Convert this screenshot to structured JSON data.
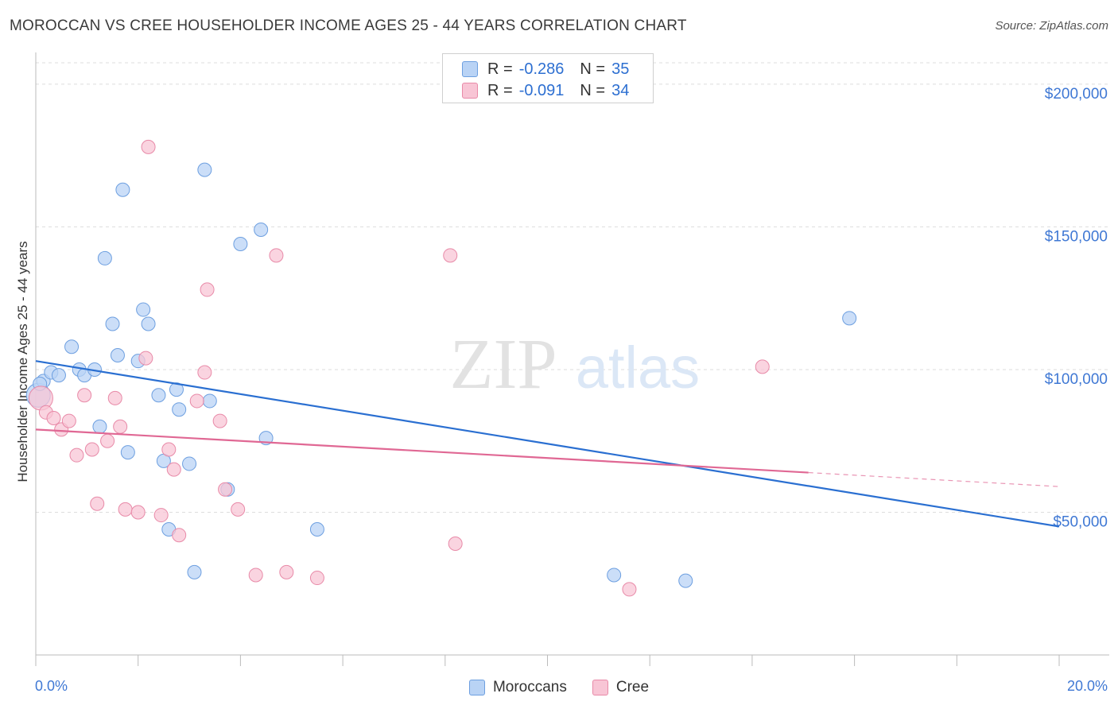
{
  "header": {
    "title": "MOROCCAN VS CREE HOUSEHOLDER INCOME AGES 25 - 44 YEARS CORRELATION CHART",
    "source": "Source: ZipAtlas.com"
  },
  "watermark": {
    "zip": "ZIP",
    "atlas": "atlas"
  },
  "stats_legend": {
    "rows": [
      {
        "r_label": "R =",
        "r_value": "-0.286",
        "n_label": "N =",
        "n_value": "35"
      },
      {
        "r_label": "R =",
        "r_value": "-0.091",
        "n_label": "N =",
        "n_value": "34"
      }
    ]
  },
  "colors": {
    "moroccans_fill": "#b9d3f5",
    "moroccans_stroke": "#6d9fe0",
    "moroccans_line": "#2a6fd1",
    "cree_fill": "#f8c5d5",
    "cree_stroke": "#e88aa8",
    "cree_line": "#e06894",
    "tick_label": "#3f78d4",
    "grid": "#dddddd"
  },
  "chart_data": {
    "type": "scatter",
    "title": "MOROCCAN VS CREE HOUSEHOLDER INCOME AGES 25 - 44 YEARS CORRELATION CHART",
    "xlabel": "",
    "ylabel": "Householder Income Ages 25 - 44 years",
    "xlim": [
      0,
      20
    ],
    "ylim": [
      0,
      210000
    ],
    "x_tick_labels": [
      "0.0%",
      "20.0%"
    ],
    "y_ticks": [
      50000,
      100000,
      150000,
      200000
    ],
    "y_tick_labels": [
      "$50,000",
      "$100,000",
      "$150,000",
      "$200,000"
    ],
    "grid": true,
    "legend_position": "bottom-center",
    "series": [
      {
        "name": "Moroccans",
        "points": [
          [
            0.05,
            91000
          ],
          [
            0.15,
            96000
          ],
          [
            0.3,
            99000
          ],
          [
            0.45,
            98000
          ],
          [
            0.7,
            108000
          ],
          [
            0.85,
            100000
          ],
          [
            0.95,
            98000
          ],
          [
            1.15,
            100000
          ],
          [
            1.25,
            80000
          ],
          [
            1.35,
            139000
          ],
          [
            1.5,
            116000
          ],
          [
            1.6,
            105000
          ],
          [
            1.7,
            163000
          ],
          [
            1.8,
            71000
          ],
          [
            2.0,
            103000
          ],
          [
            2.1,
            121000
          ],
          [
            2.2,
            116000
          ],
          [
            2.4,
            91000
          ],
          [
            2.5,
            68000
          ],
          [
            2.6,
            44000
          ],
          [
            2.75,
            93000
          ],
          [
            2.8,
            86000
          ],
          [
            3.0,
            67000
          ],
          [
            3.1,
            29000
          ],
          [
            3.3,
            170000
          ],
          [
            3.4,
            89000
          ],
          [
            3.75,
            58000
          ],
          [
            4.0,
            144000
          ],
          [
            4.4,
            149000
          ],
          [
            4.5,
            76000
          ],
          [
            5.5,
            44000
          ],
          [
            11.3,
            28000
          ],
          [
            12.7,
            26000
          ],
          [
            15.9,
            118000
          ],
          [
            0.08,
            95000
          ]
        ]
      },
      {
        "name": "Cree",
        "points": [
          [
            0.1,
            90000
          ],
          [
            0.2,
            85000
          ],
          [
            0.35,
            83000
          ],
          [
            0.5,
            79000
          ],
          [
            0.65,
            82000
          ],
          [
            0.8,
            70000
          ],
          [
            0.95,
            91000
          ],
          [
            1.1,
            72000
          ],
          [
            1.2,
            53000
          ],
          [
            1.4,
            75000
          ],
          [
            1.55,
            90000
          ],
          [
            1.65,
            80000
          ],
          [
            1.75,
            51000
          ],
          [
            2.0,
            50000
          ],
          [
            2.15,
            104000
          ],
          [
            2.2,
            178000
          ],
          [
            2.45,
            49000
          ],
          [
            2.6,
            72000
          ],
          [
            2.7,
            65000
          ],
          [
            2.8,
            42000
          ],
          [
            3.15,
            89000
          ],
          [
            3.3,
            99000
          ],
          [
            3.35,
            128000
          ],
          [
            3.6,
            82000
          ],
          [
            3.7,
            58000
          ],
          [
            3.95,
            51000
          ],
          [
            4.3,
            28000
          ],
          [
            4.7,
            140000
          ],
          [
            4.9,
            29000
          ],
          [
            5.5,
            27000
          ],
          [
            8.2,
            39000
          ],
          [
            8.1,
            140000
          ],
          [
            11.6,
            23000
          ],
          [
            14.2,
            101000
          ]
        ]
      }
    ],
    "trend_lines": [
      {
        "series": "Moroccans",
        "x": [
          0,
          20
        ],
        "y": [
          103000,
          45000
        ],
        "dashed_from": null
      },
      {
        "series": "Cree",
        "x": [
          0,
          20
        ],
        "y": [
          79000,
          59000
        ],
        "dashed_from": 15.1
      }
    ]
  },
  "bottom_legend": {
    "items": [
      "Moroccans",
      "Cree"
    ]
  }
}
